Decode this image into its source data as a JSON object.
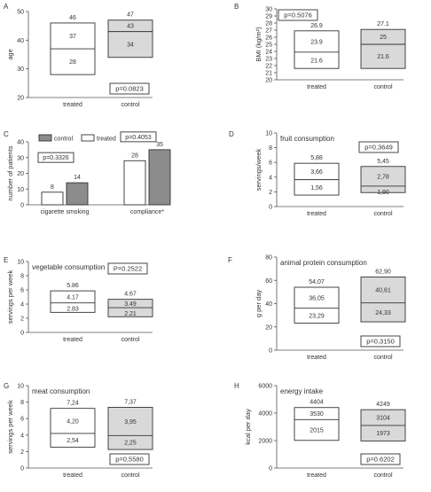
{
  "colors": {
    "treated": "#ffffff",
    "control": "#d9d9d9",
    "bar_control": "#8c8c8c",
    "bar_treated": "#ffffff"
  },
  "chart_data": [
    {
      "id": "A",
      "type": "box",
      "panel_letter": "A",
      "title": "",
      "ylabel": "age",
      "ylim": [
        20,
        50
      ],
      "yticks": [
        "20",
        "30",
        "40",
        "50"
      ],
      "categories": [
        "treated",
        "control"
      ],
      "boxes": [
        {
          "name": "treated",
          "q1": 28,
          "median": 37,
          "q3": 46,
          "labels": [
            "46",
            "37",
            "28"
          ]
        },
        {
          "name": "control",
          "q1": 34,
          "median": 43,
          "q3": 47,
          "labels": [
            "47",
            "43",
            "34"
          ]
        }
      ],
      "pvalue": "p=0.0823",
      "pvalue_pos": "bottom-right"
    },
    {
      "id": "B",
      "type": "box",
      "panel_letter": "B",
      "title": "",
      "ylabel": "BMI (kg/m²)",
      "ylim": [
        20,
        30
      ],
      "yticks": [
        "20",
        "21",
        "22",
        "23",
        "24",
        "25",
        "26",
        "27",
        "28",
        "29",
        "30"
      ],
      "categories": [
        "treated",
        "control"
      ],
      "boxes": [
        {
          "name": "treated",
          "q1": 21.6,
          "median": 23.9,
          "q3": 26.9,
          "labels": [
            "26.9",
            "23.9",
            "21.6"
          ]
        },
        {
          "name": "control",
          "q1": 21.6,
          "median": 25,
          "q3": 27.1,
          "labels": [
            "27.1",
            "25",
            "21.6"
          ]
        }
      ],
      "pvalue": "p=0.5076",
      "pvalue_pos": "top-left"
    },
    {
      "id": "C",
      "type": "bar",
      "panel_letter": "C",
      "title": "",
      "ylabel": "number of patients",
      "ylim": [
        0,
        40
      ],
      "yticks": [
        "0",
        "10",
        "20",
        "30",
        "40"
      ],
      "categories": [
        "cigarette smoking",
        "compliance*"
      ],
      "series": [
        {
          "name": "treated",
          "values": [
            8,
            28
          ],
          "labels": [
            "8",
            "28"
          ]
        },
        {
          "name": "control",
          "values": [
            14,
            35
          ],
          "labels": [
            "14",
            "35"
          ]
        }
      ],
      "legend": [
        "control",
        "treated"
      ],
      "pvalues": [
        "p=0.3326",
        "p=0.4053"
      ]
    },
    {
      "id": "D",
      "type": "box",
      "panel_letter": "D",
      "title": "fruit consumption",
      "ylabel": "servings/week",
      "ylim": [
        0,
        10
      ],
      "yticks": [
        "0",
        "2",
        "4",
        "6",
        "8",
        "10"
      ],
      "categories": [
        "treated",
        "control"
      ],
      "boxes": [
        {
          "name": "treated",
          "q1": 1.56,
          "median": 3.66,
          "q3": 5.88,
          "labels": [
            "5,88",
            "3,66",
            "1,56"
          ]
        },
        {
          "name": "control",
          "q1": 1.9,
          "median": 2.78,
          "q3": 5.45,
          "labels": [
            "5,45",
            "2,78",
            "1,90"
          ]
        }
      ],
      "pvalue": "p=0,3649",
      "pvalue_pos": "top-right"
    },
    {
      "id": "E",
      "type": "box",
      "panel_letter": "E",
      "title": "vegetable consumption",
      "ylabel": "servings per week",
      "ylim": [
        0,
        10
      ],
      "yticks": [
        "0",
        "2",
        "4",
        "6",
        "8",
        "10"
      ],
      "categories": [
        "treated",
        "control"
      ],
      "boxes": [
        {
          "name": "treated",
          "q1": 2.83,
          "median": 4.17,
          "q3": 5.86,
          "labels": [
            "5.86",
            "4.17",
            "2.83"
          ]
        },
        {
          "name": "control",
          "q1": 2.21,
          "median": 3.49,
          "q3": 4.67,
          "labels": [
            "4.67",
            "3.49",
            "2.21"
          ]
        }
      ],
      "pvalue": "P=0.2522",
      "pvalue_pos": "top-right"
    },
    {
      "id": "F",
      "type": "box",
      "panel_letter": "F",
      "title": "animal protein consumption",
      "ylabel": "g per day",
      "ylim": [
        0,
        80
      ],
      "yticks": [
        "0",
        "20",
        "40",
        "60",
        "80"
      ],
      "categories": [
        "treated",
        "control"
      ],
      "boxes": [
        {
          "name": "treated",
          "q1": 23.29,
          "median": 36.05,
          "q3": 54.07,
          "labels": [
            "54,07",
            "36,05",
            "23,29"
          ]
        },
        {
          "name": "control",
          "q1": 24.33,
          "median": 40.61,
          "q3": 62.9,
          "labels": [
            "62,90",
            "40,61",
            "24,33"
          ]
        }
      ],
      "pvalue": "p=0,3150",
      "pvalue_pos": "bottom-right"
    },
    {
      "id": "G",
      "type": "box",
      "panel_letter": "G",
      "title": "meat consumption",
      "ylabel": "servings per week",
      "ylim": [
        0,
        10
      ],
      "yticks": [
        "0",
        "2",
        "4",
        "6",
        "8",
        "10"
      ],
      "categories": [
        "treated",
        "control"
      ],
      "boxes": [
        {
          "name": "treated",
          "q1": 2.54,
          "median": 4.2,
          "q3": 7.24,
          "labels": [
            "7,24",
            "4,20",
            "2,54"
          ]
        },
        {
          "name": "control",
          "q1": 2.25,
          "median": 3.95,
          "q3": 7.37,
          "labels": [
            "7,37",
            "3,95",
            "2,25"
          ]
        }
      ],
      "pvalue": "p=0,5580",
      "pvalue_pos": "bottom-right"
    },
    {
      "id": "H",
      "type": "box",
      "panel_letter": "H",
      "title": "energy intake",
      "ylabel": "kcal per day",
      "ylim": [
        0,
        6000
      ],
      "yticks": [
        "0",
        "2000",
        "4000",
        "6000"
      ],
      "categories": [
        "treated",
        "control"
      ],
      "boxes": [
        {
          "name": "treated",
          "q1": 2015,
          "median": 3530,
          "q3": 4404,
          "labels": [
            "4404",
            "3530",
            "2015"
          ]
        },
        {
          "name": "control",
          "q1": 1973,
          "median": 3104,
          "q3": 4249,
          "labels": [
            "4249",
            "3104",
            "1973"
          ]
        }
      ],
      "pvalue": "p=0.6202",
      "pvalue_pos": "bottom-right"
    }
  ]
}
